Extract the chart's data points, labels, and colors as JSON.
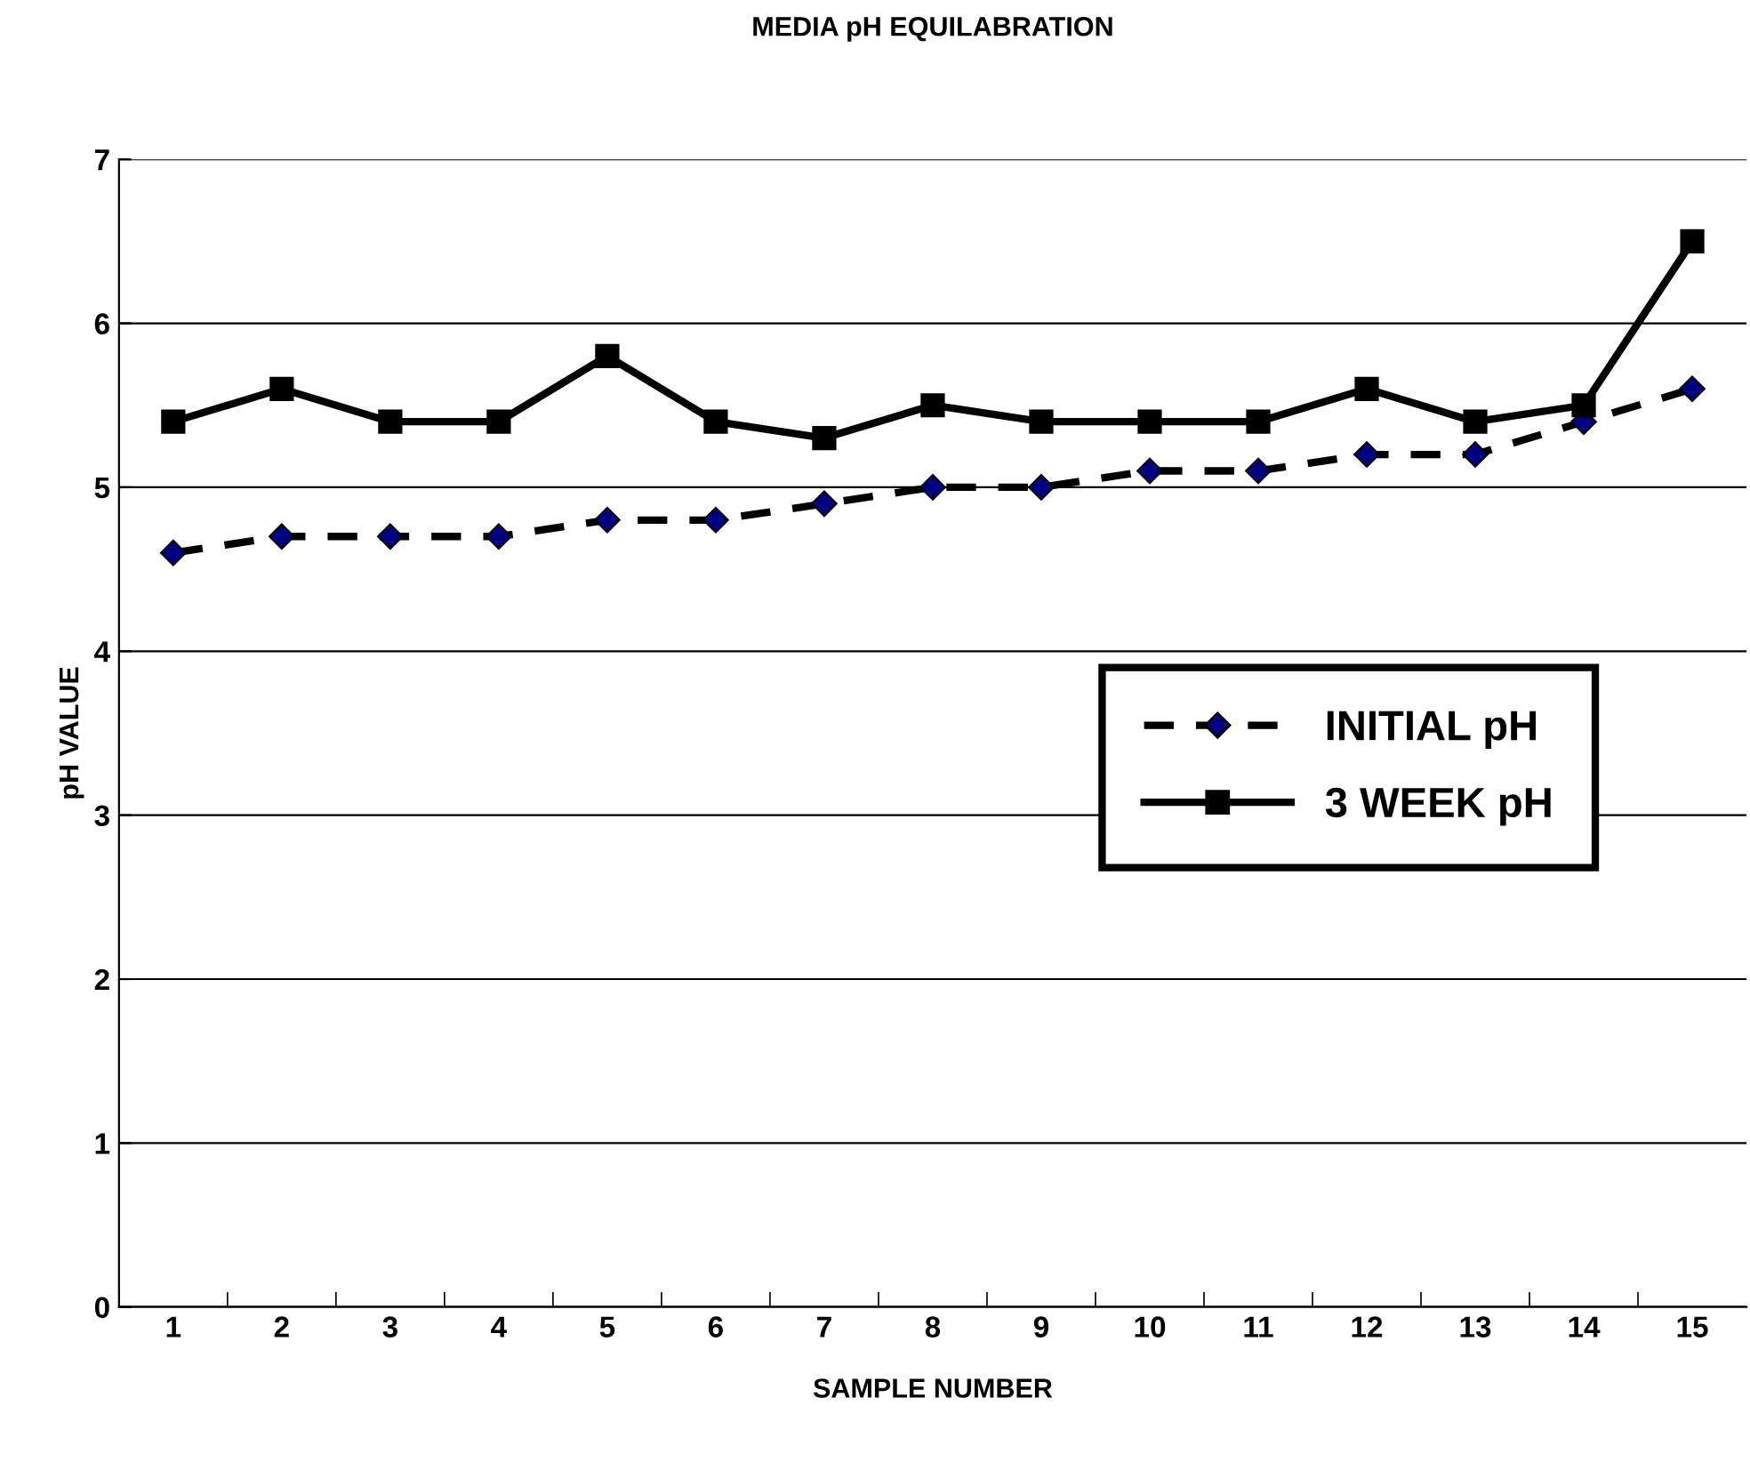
{
  "chart_data": {
    "type": "line",
    "title": "MEDIA pH EQUILABRATION",
    "xlabel": "SAMPLE NUMBER",
    "ylabel": "pH VALUE",
    "categories": [
      "1",
      "2",
      "3",
      "4",
      "5",
      "6",
      "7",
      "8",
      "9",
      "10",
      "11",
      "12",
      "13",
      "14",
      "15"
    ],
    "series": [
      {
        "name": "INITIAL pH",
        "color": "#000000",
        "colors": [
          "#000080",
          "#000080",
          "#000080",
          "#000080",
          "#000080",
          "#000080",
          "#000080",
          "#000080",
          "#000080",
          "#000080",
          "#000080",
          "#000080",
          "#000080",
          "#000080",
          "#000080"
        ],
        "marker": "diamond",
        "line_style": "dashed",
        "values": [
          4.6,
          4.7,
          4.7,
          4.7,
          4.8,
          4.8,
          4.9,
          5.0,
          5.0,
          5.1,
          5.1,
          5.2,
          5.2,
          5.4,
          5.6
        ]
      },
      {
        "name": "3 WEEK pH",
        "color": "#000000",
        "marker": "square",
        "line_style": "solid",
        "values": [
          5.4,
          5.6,
          5.4,
          5.4,
          5.8,
          5.4,
          5.3,
          5.5,
          5.4,
          5.4,
          5.4,
          5.6,
          5.4,
          5.5,
          6.5
        ]
      }
    ],
    "ylim": [
      0,
      7
    ],
    "yticks": [
      0,
      1,
      2,
      3,
      4,
      5,
      6,
      7
    ],
    "grid": "y",
    "legend": "right"
  }
}
